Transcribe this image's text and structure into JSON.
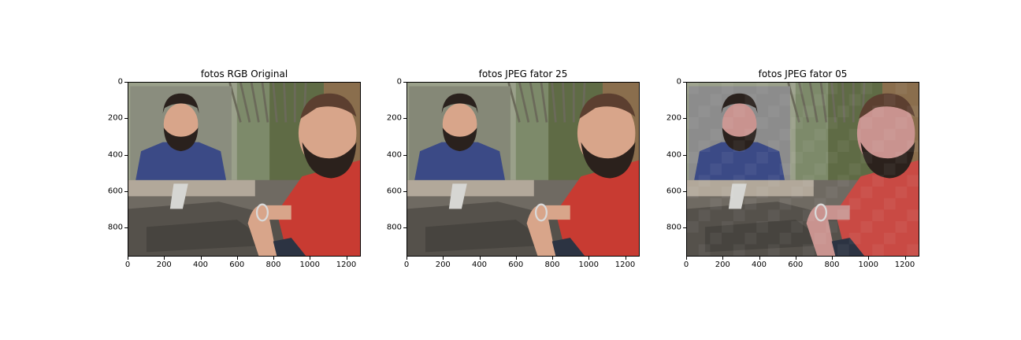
{
  "panels": [
    {
      "title": "fotos RGB Original",
      "variant": "original"
    },
    {
      "title": "fotos JPEG fator 25",
      "variant": "q25"
    },
    {
      "title": "fotos JPEG fator 05",
      "variant": "q05"
    }
  ],
  "x_ticks": [
    "0",
    "200",
    "400",
    "600",
    "800",
    "1000",
    "1200"
  ],
  "y_ticks": [
    "0",
    "200",
    "400",
    "600",
    "800"
  ],
  "x_range": [
    0,
    1280
  ],
  "y_range": [
    0,
    960
  ],
  "colors": {
    "inset_bg_original": "#8a8d7e",
    "inset_bg_q25": "#858877",
    "inset_bg_q05": "#8c8c8c",
    "shirt_blue": "#3b4a86",
    "red_shirt": "#c83b32",
    "rocks": "#6f6a62",
    "foliage": "#7d8a6a",
    "cliff": "#8a6e4d"
  }
}
